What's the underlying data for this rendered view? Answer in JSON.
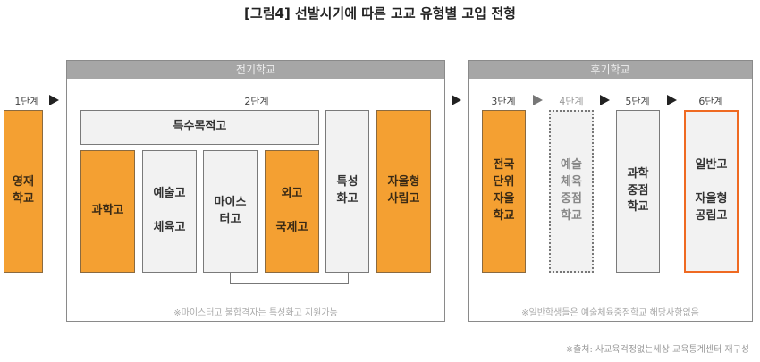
{
  "title": "[그림4] 선발시기에 따른 고교 유형별 고입 전형",
  "early": {
    "header": "전기학교",
    "note": "※마이스터고 불합격자는 특성화고 지원가능"
  },
  "late": {
    "header": "후기학교",
    "note": "※일반학생들은 예술체육중점학교 해당사항없음"
  },
  "stages": [
    "1단계",
    "2단계",
    "3단계",
    "4단계",
    "5단계",
    "6단계"
  ],
  "boxes": {
    "gifted": "영재\n학교",
    "special_purpose": "특수목적고",
    "science": "과학고",
    "arts": "예술고\n\n체육고",
    "meister": "마이스\n터고",
    "foreign": "외고\n\n국제고",
    "specialized": "특성\n화고",
    "private_autonomous": "자율형\n사립고",
    "national_autonomous": "전국\n단위\n자율\n학교",
    "arts_sports_focus": "예술\n체육\n중점\n학교",
    "science_focus": "과학\n중점\n학교",
    "general": "일반고\n\n자율형\n공립고"
  },
  "source": "※출처: 사교육걱정없는세상 교육통계센터 재구성",
  "colors": {
    "orange": "#f4a032",
    "gray": "#f2f2f2",
    "header": "#a6a6a6",
    "accent_border": "#ef6a22"
  }
}
